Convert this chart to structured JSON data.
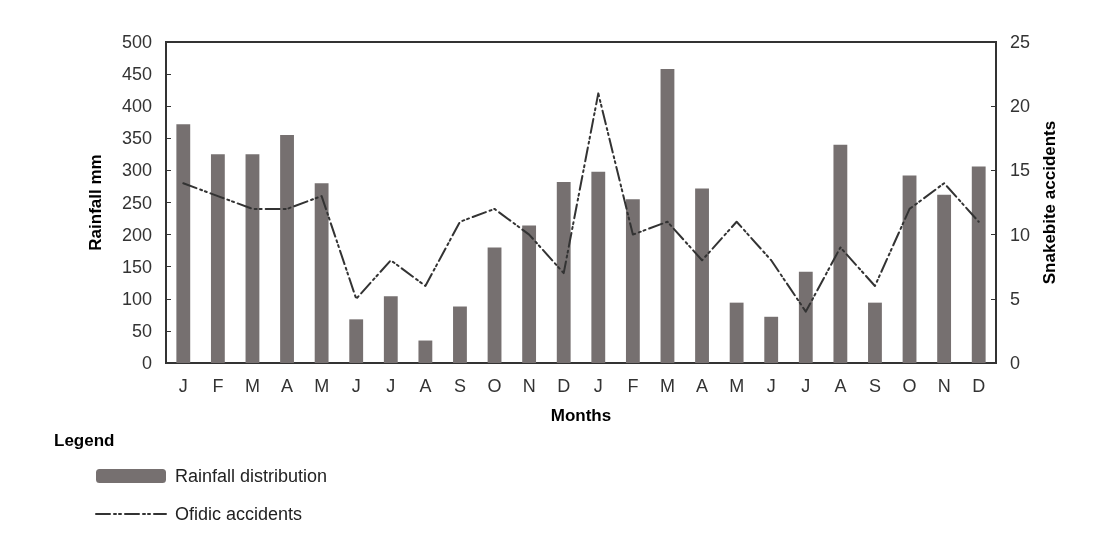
{
  "chart_data": {
    "type": "bar",
    "xlabel": "Months",
    "ylabel": "Rainfall mm",
    "y2label": "Snakebite accidents",
    "legend_title": "Legend",
    "categories": [
      "J",
      "F",
      "M",
      "A",
      "M",
      "J",
      "J",
      "A",
      "S",
      "O",
      "N",
      "D",
      "J",
      "F",
      "M",
      "A",
      "M",
      "J",
      "J",
      "A",
      "S",
      "O",
      "N",
      "D"
    ],
    "series": [
      {
        "name": "Rainfall distribution",
        "type": "bar",
        "color": "#767070",
        "values": [
          372,
          325,
          325,
          355,
          280,
          68,
          104,
          35,
          88,
          180,
          214,
          282,
          298,
          255,
          458,
          272,
          94,
          72,
          142,
          340,
          94,
          292,
          262,
          306
        ]
      },
      {
        "name": "Ofidic accidents",
        "type": "line",
        "axis": "y2",
        "color": "#333333",
        "line_style": "dashed",
        "marker": "none",
        "values": [
          14,
          13,
          12,
          12,
          13,
          5,
          8,
          6,
          11,
          12,
          10,
          7,
          21,
          10,
          11,
          8,
          11,
          8,
          4,
          9,
          6,
          12,
          14,
          11
        ]
      }
    ],
    "ylim": [
      0,
      500
    ],
    "yticks": [
      0,
      50,
      100,
      150,
      200,
      250,
      300,
      350,
      400,
      450,
      500
    ],
    "y2lim": [
      0,
      25
    ],
    "y2ticks": [
      0,
      5,
      10,
      15,
      20,
      25
    ],
    "grid": false,
    "legend": "bottom left"
  }
}
